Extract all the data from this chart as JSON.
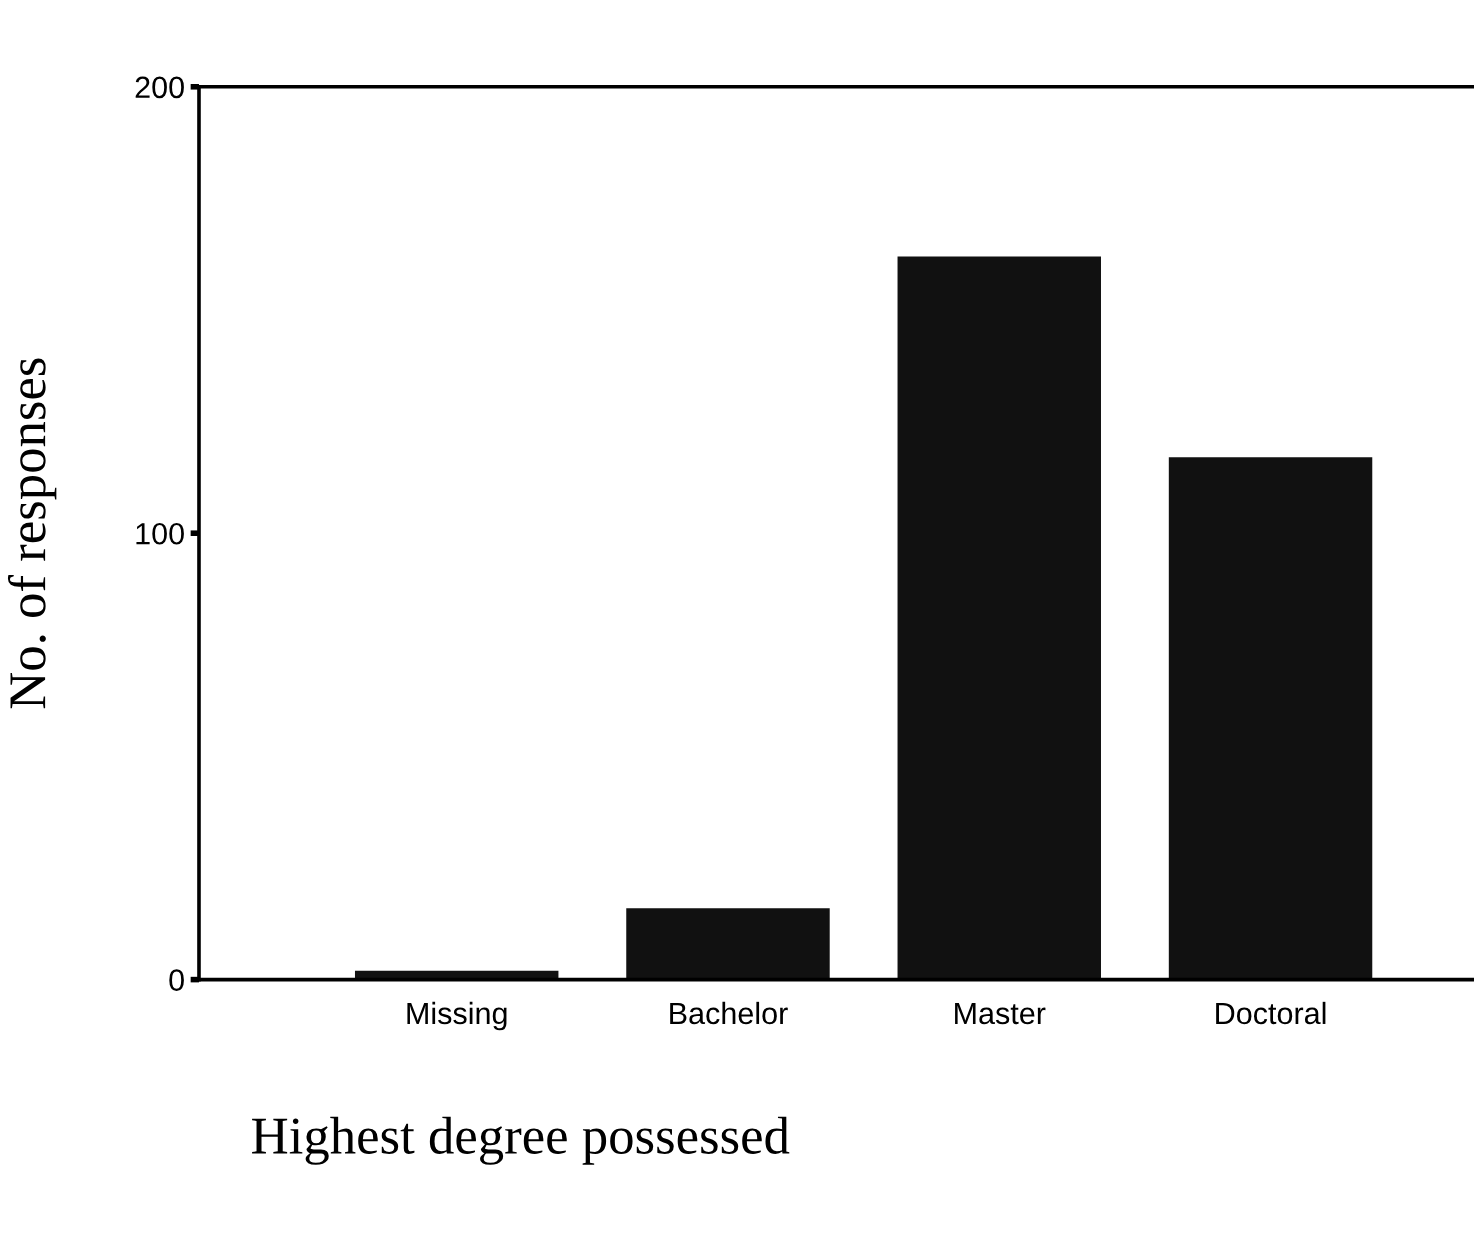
{
  "chart_data": {
    "type": "bar",
    "xlabel": "Highest degree possessed",
    "ylabel": "No. of responses",
    "categories": [
      "Missing",
      "Bachelor",
      "Master",
      "Doctoral"
    ],
    "values": [
      2,
      16,
      162,
      117
    ],
    "color": "#111111",
    "ylim": [
      0,
      200
    ],
    "yticks": [
      0,
      100,
      200
    ],
    "grid": false
  }
}
